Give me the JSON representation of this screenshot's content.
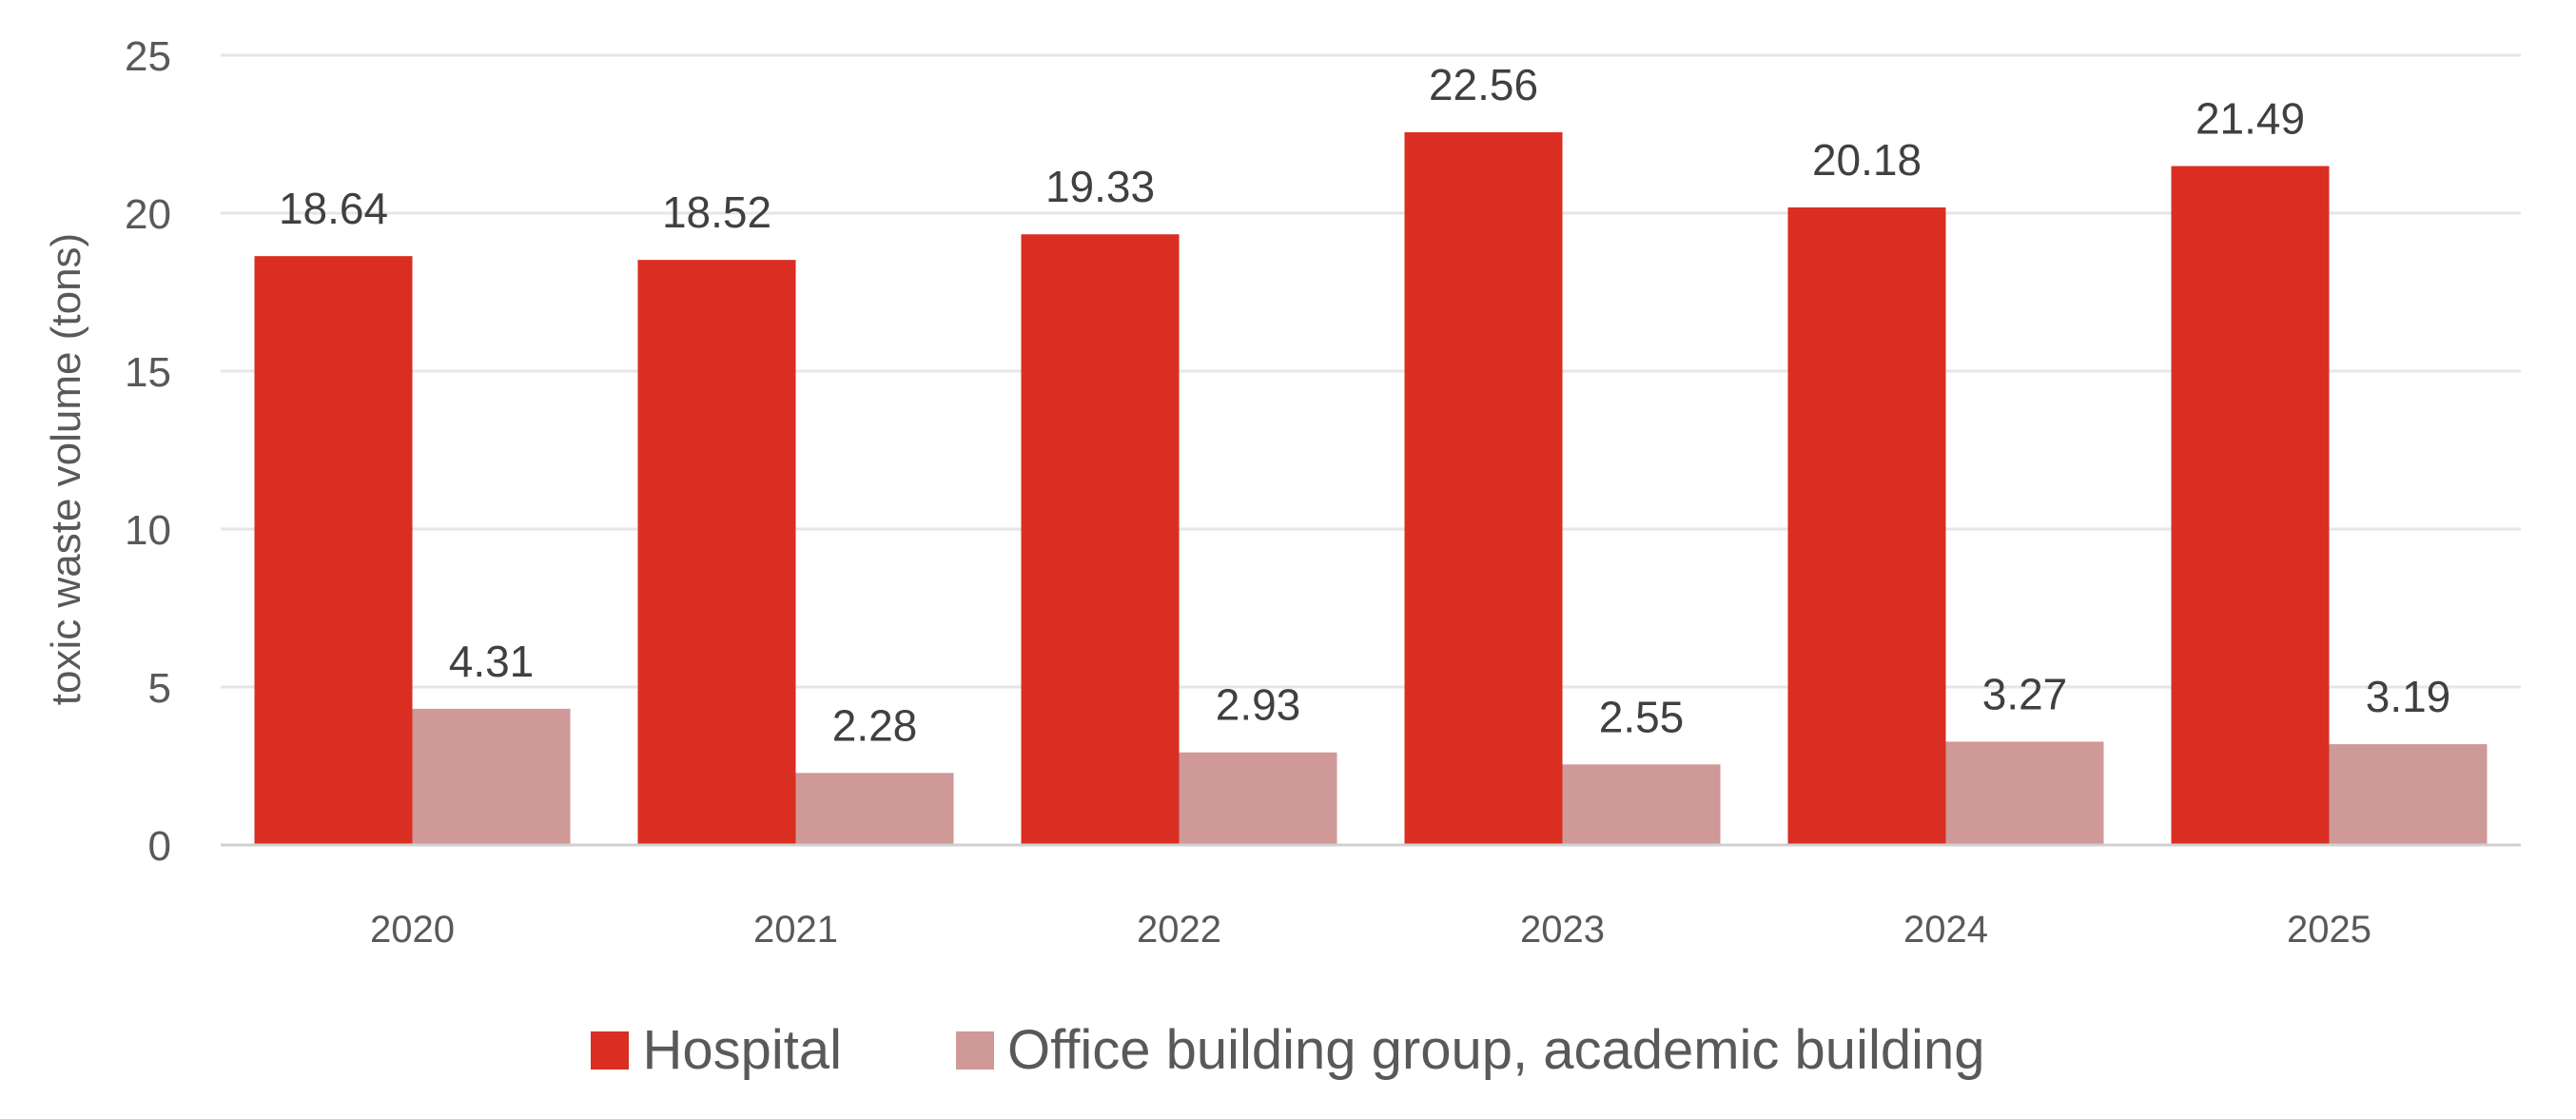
{
  "chart_data": {
    "type": "bar",
    "title": "",
    "xlabel": "",
    "ylabel": "toxic waste volume (tons)",
    "ylim": [
      0,
      25
    ],
    "yticks": [
      0,
      5,
      10,
      15,
      20,
      25
    ],
    "grid": true,
    "legend_position": "bottom",
    "categories": [
      "2020",
      "2021",
      "2022",
      "2023",
      "2024",
      "2025"
    ],
    "series": [
      {
        "name": "Hospital",
        "color": "#DA2E22",
        "values": [
          18.64,
          18.52,
          19.33,
          22.56,
          20.18,
          21.49
        ],
        "labels": [
          "18.64",
          "18.52",
          "19.33",
          "22.56",
          "20.18",
          "21.49"
        ]
      },
      {
        "name": "Office building group, academic building",
        "color": "#CF9997",
        "values": [
          4.31,
          2.28,
          2.93,
          2.55,
          3.27,
          3.19
        ],
        "labels": [
          "4.31",
          "2.28",
          "2.93",
          "2.55",
          "3.27",
          "3.19"
        ]
      }
    ]
  }
}
